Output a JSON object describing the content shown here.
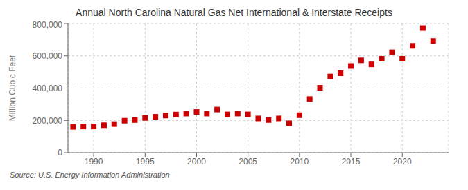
{
  "chart_data": {
    "type": "scatter",
    "title": "Annual North Carolina Natural Gas Net International & Interstate Receipts",
    "y_label": "Million Cubic Feet",
    "annotations": [
      "Source: U.S. Energy Information Administration"
    ],
    "x": [
      1988,
      1989,
      1990,
      1991,
      1992,
      1993,
      1994,
      1995,
      1996,
      1997,
      1998,
      1999,
      2000,
      2001,
      2002,
      2003,
      2004,
      2005,
      2006,
      2007,
      2008,
      2009,
      2010,
      2011,
      2012,
      2013,
      2014,
      2015,
      2016,
      2017,
      2018,
      2019,
      2020,
      2021,
      2022,
      2023
    ],
    "values": [
      160000,
      162000,
      162000,
      170000,
      177000,
      198000,
      202000,
      215000,
      222000,
      230000,
      236000,
      242000,
      252000,
      242000,
      267000,
      237000,
      242000,
      237000,
      212000,
      202000,
      212000,
      182000,
      232000,
      332000,
      402000,
      472000,
      492000,
      537000,
      572000,
      547000,
      582000,
      622000,
      582000,
      662000,
      772000,
      692000
    ],
    "color": "#cc0000",
    "marker": "square",
    "xlim": [
      1987.5,
      2024.5
    ],
    "xticks": [
      1990,
      1995,
      2000,
      2005,
      2010,
      2015,
      2020
    ],
    "ylim": [
      0,
      800000
    ],
    "yticks": [
      0,
      {
        "value": 200000,
        "label": "200,000"
      },
      {
        "value": 400000,
        "label": "400,000"
      },
      {
        "value": 600000,
        "label": "600,000"
      },
      {
        "value": 800000,
        "label": "800,000"
      }
    ],
    "grid": true
  }
}
